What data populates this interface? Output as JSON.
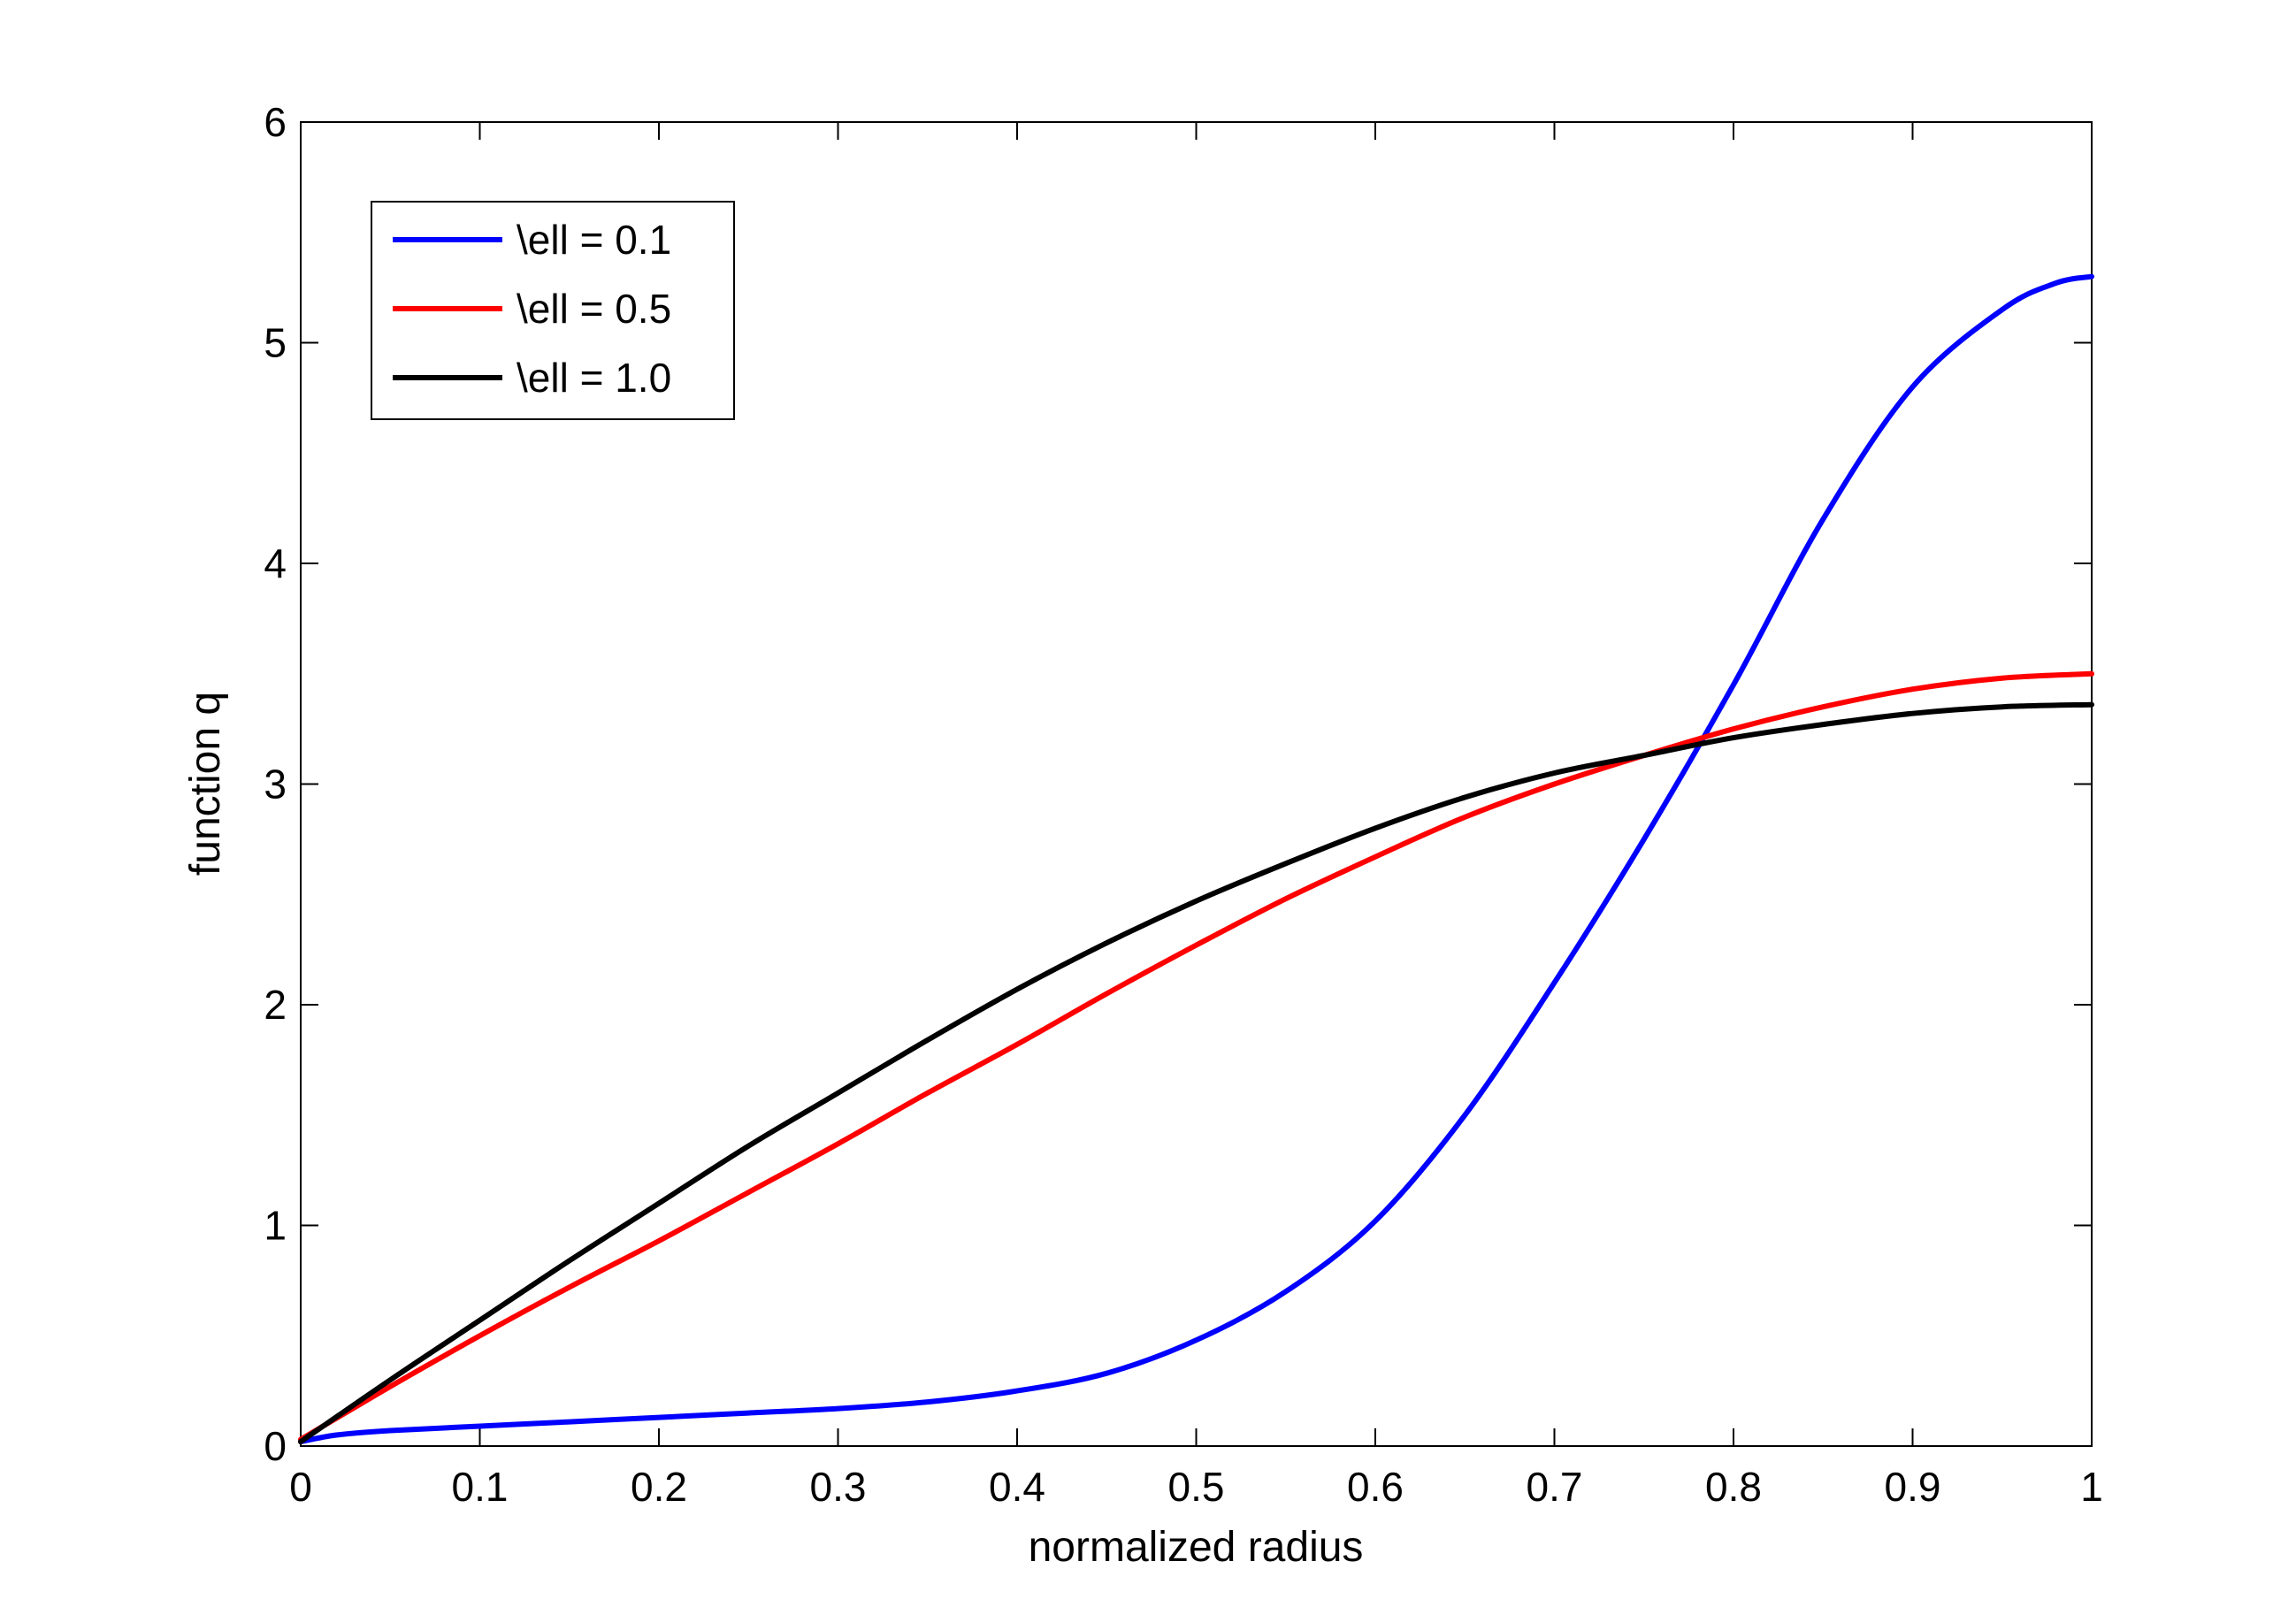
{
  "chart_data": {
    "type": "line",
    "title": "",
    "xlabel": "normalized radius",
    "ylabel": "function q",
    "xlim": [
      0,
      1
    ],
    "ylim": [
      0,
      6
    ],
    "xticks": [
      0,
      0.1,
      0.2,
      0.3,
      0.4,
      0.5,
      0.6,
      0.7,
      0.8,
      0.9,
      1
    ],
    "xtick_labels": [
      "0",
      "0.1",
      "0.2",
      "0.3",
      "0.4",
      "0.5",
      "0.6",
      "0.7",
      "0.8",
      "0.9",
      "1"
    ],
    "yticks": [
      0,
      1,
      2,
      3,
      4,
      5,
      6
    ],
    "ytick_labels": [
      "0",
      "1",
      "2",
      "3",
      "4",
      "5",
      "6"
    ],
    "grid": false,
    "legend_position": "top-left",
    "series": [
      {
        "name": "\\ell = 0.1",
        "color": "#0000ff",
        "x": [
          0,
          0.02,
          0.05,
          0.1,
          0.15,
          0.2,
          0.25,
          0.3,
          0.35,
          0.4,
          0.45,
          0.5,
          0.55,
          0.6,
          0.65,
          0.7,
          0.75,
          0.8,
          0.85,
          0.9,
          0.95,
          0.98,
          1.0
        ],
        "y": [
          0.02,
          0.05,
          0.07,
          0.09,
          0.11,
          0.13,
          0.15,
          0.17,
          0.2,
          0.25,
          0.33,
          0.48,
          0.7,
          1.02,
          1.5,
          2.1,
          2.75,
          3.45,
          4.2,
          4.8,
          5.15,
          5.27,
          5.3
        ]
      },
      {
        "name": "\\ell = 0.5",
        "color": "#ff0000",
        "x": [
          0,
          0.05,
          0.1,
          0.15,
          0.2,
          0.25,
          0.3,
          0.35,
          0.4,
          0.45,
          0.5,
          0.55,
          0.6,
          0.65,
          0.7,
          0.75,
          0.8,
          0.85,
          0.9,
          0.95,
          1.0
        ],
        "y": [
          0.03,
          0.27,
          0.5,
          0.72,
          0.93,
          1.15,
          1.37,
          1.6,
          1.82,
          2.05,
          2.27,
          2.48,
          2.67,
          2.85,
          3.0,
          3.13,
          3.25,
          3.35,
          3.43,
          3.48,
          3.5
        ]
      },
      {
        "name": "\\ell = 1.0",
        "color": "#000000",
        "x": [
          0,
          0.05,
          0.1,
          0.15,
          0.2,
          0.25,
          0.3,
          0.35,
          0.4,
          0.45,
          0.5,
          0.55,
          0.6,
          0.65,
          0.7,
          0.75,
          0.8,
          0.85,
          0.9,
          0.95,
          1.0
        ],
        "y": [
          0.02,
          0.3,
          0.57,
          0.84,
          1.1,
          1.36,
          1.6,
          1.84,
          2.07,
          2.28,
          2.47,
          2.64,
          2.8,
          2.94,
          3.05,
          3.13,
          3.21,
          3.27,
          3.32,
          3.35,
          3.36
        ]
      }
    ]
  }
}
